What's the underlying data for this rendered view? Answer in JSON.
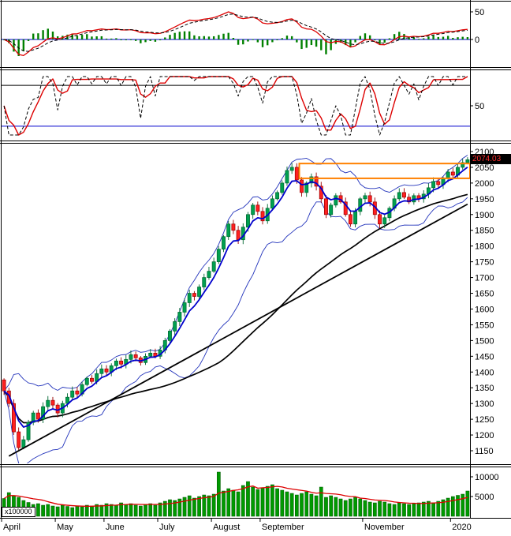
{
  "price_tag": {
    "value": "2074.03"
  },
  "axes": {
    "price_ticks": [
      2100,
      2050,
      2000,
      1950,
      1900,
      1850,
      1800,
      1750,
      1700,
      1650,
      1600,
      1550,
      1500,
      1450,
      1400,
      1350,
      1300,
      1250,
      1200,
      1150
    ],
    "macd_ticks": [
      50,
      0
    ],
    "stoch_ticks": [
      50
    ],
    "volume_ticks": [
      10000,
      5000
    ],
    "volume_unit": "x100000",
    "months": [
      {
        "label": "April",
        "i": 0
      },
      {
        "label": "May",
        "i": 11
      },
      {
        "label": "June",
        "i": 21
      },
      {
        "label": "July",
        "i": 32
      },
      {
        "label": "August",
        "i": 43
      },
      {
        "label": "September",
        "i": 53
      },
      {
        "label": "November",
        "i": 74
      },
      {
        "label": "2020",
        "i": 92
      }
    ]
  },
  "colors": {
    "up": "#00a050",
    "up_edge": "#006630",
    "down": "#ff2020",
    "down_edge": "#990000",
    "bollinger": "#2233bb",
    "ma_fast": "#0000cc",
    "ma_slow": "#000000",
    "trendline": "#000000",
    "highlight": "#ff8000",
    "macd_line": "#dd0000",
    "signal_line": "#000000",
    "histogram": "#008000",
    "stoch_line": "#dd0000",
    "stoch_signal": "#000000",
    "ref_black": "#000000",
    "ref_blue": "#0000cc",
    "zero_line": "#0000cc",
    "volume": "#009900",
    "volume_edge": "#005500",
    "volume_ma": "#dd0000",
    "axis_text": "#000000",
    "frame": "#000000",
    "tag_bg": "#000000",
    "tag_text": "#ff3030"
  },
  "chart_data": [
    {
      "type": "candlestick",
      "name": "price",
      "title": "",
      "ylim": [
        1150,
        2100
      ],
      "last": 2074.03,
      "closes": [
        1340,
        1300,
        1210,
        1160,
        1185,
        1240,
        1270,
        1250,
        1290,
        1310,
        1295,
        1270,
        1300,
        1320,
        1340,
        1330,
        1360,
        1380,
        1370,
        1395,
        1410,
        1400,
        1420,
        1435,
        1425,
        1440,
        1455,
        1445,
        1430,
        1450,
        1460,
        1450,
        1470,
        1500,
        1530,
        1560,
        1590,
        1620,
        1650,
        1640,
        1670,
        1700,
        1720,
        1750,
        1790,
        1830,
        1870,
        1850,
        1820,
        1860,
        1900,
        1930,
        1910,
        1880,
        1920,
        1950,
        1970,
        2000,
        2040,
        2050,
        2010,
        1970,
        2000,
        2020,
        1990,
        1950,
        1900,
        1930,
        1960,
        1940,
        1900,
        1870,
        1910,
        1950,
        1960,
        1940,
        1900,
        1870,
        1890,
        1920,
        1950,
        1970,
        1955,
        1940,
        1960,
        1950,
        1965,
        1985,
        2005,
        1995,
        2015,
        2035,
        2025,
        2050,
        2065,
        2074.03
      ],
      "overlays": [
        {
          "name": "bollinger",
          "window": 10,
          "mult": 2
        },
        {
          "name": "ma-fast-blue",
          "window": 5
        },
        {
          "name": "ma-slow-black",
          "window": 45
        },
        {
          "name": "trendline",
          "i1": 1,
          "p1": 1133,
          "i2": 95,
          "p2": 1933
        }
      ],
      "highlight_box": {
        "i1": 61,
        "top": 2062,
        "bottom": 2015
      }
    },
    {
      "type": "bar+line",
      "name": "macd-panel",
      "yticks": [
        50,
        0
      ],
      "derived": "MACD of closes with signal line and green histogram"
    },
    {
      "type": "line",
      "name": "stochastic-panel",
      "yticks": [
        50
      ],
      "window": 7,
      "ref_lines": [
        85,
        15
      ]
    },
    {
      "type": "bar",
      "name": "volume",
      "yticks": [
        10000,
        5000
      ],
      "unit": "x100000",
      "values": [
        4500,
        6000,
        5200,
        4800,
        4000,
        3500,
        3000,
        3200,
        2800,
        3000,
        2600,
        2400,
        2800,
        2500,
        2200,
        2600,
        2400,
        2800,
        2600,
        3000,
        2800,
        3200,
        3000,
        2800,
        3400,
        3000,
        3200,
        2800,
        2600,
        3000,
        3200,
        2800,
        3400,
        3800,
        4200,
        4000,
        4400,
        4800,
        5200,
        4600,
        5000,
        5400,
        5200,
        5600,
        11200,
        6400,
        7000,
        6600,
        6200,
        7800,
        8800,
        7400,
        6800,
        7200,
        7600,
        8000,
        7000,
        6600,
        6200,
        5800,
        5400,
        5800,
        6200,
        5600,
        5200,
        7400,
        4800,
        5200,
        4800,
        4400,
        4000,
        4400,
        4800,
        4400,
        4000,
        3600,
        3400,
        3800,
        3600,
        3200,
        3000,
        3400,
        3200,
        3000,
        3200,
        3400,
        3600,
        3800,
        3400,
        3800,
        4200,
        4600,
        5000,
        5300,
        5600,
        6400
      ]
    }
  ]
}
